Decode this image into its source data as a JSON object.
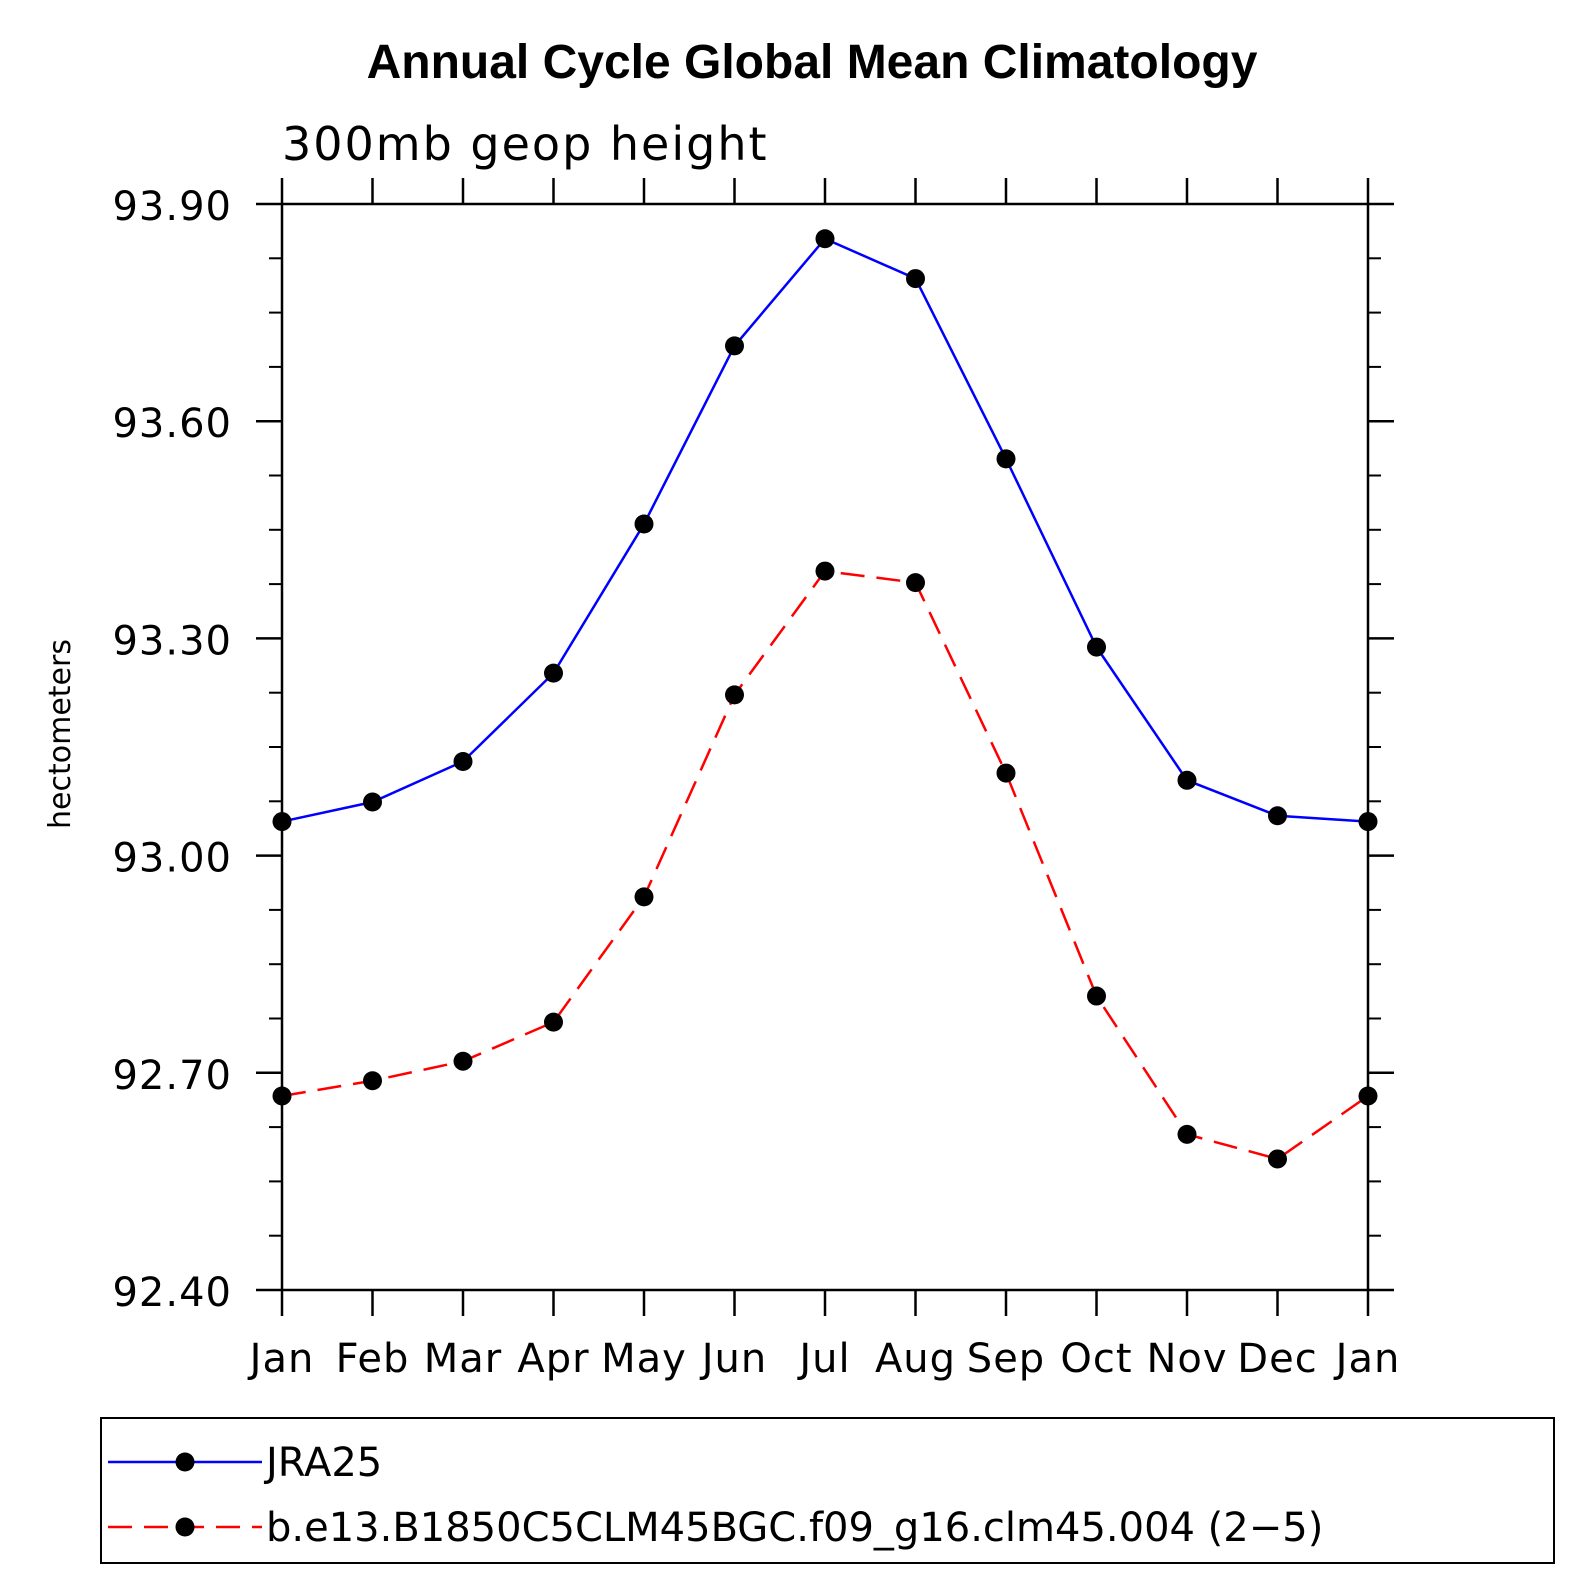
{
  "chart_data": {
    "type": "line",
    "title": "Annual Cycle Global Mean Climatology",
    "subtitle": "300mb geop height",
    "ylabel": "hectometers",
    "xlabel": "",
    "categories": [
      "Jan",
      "Feb",
      "Mar",
      "Apr",
      "May",
      "Jun",
      "Jul",
      "Aug",
      "Sep",
      "Oct",
      "Nov",
      "Dec",
      "Jan"
    ],
    "ylim": [
      92.4,
      93.9
    ],
    "yticks": [
      92.4,
      92.7,
      93.0,
      93.3,
      93.6,
      93.9
    ],
    "ytick_labels": [
      "92.40",
      "92.70",
      "93.00",
      "93.30",
      "93.60",
      "93.90"
    ],
    "minor_ticks_per_major": 3,
    "grid": false,
    "legend_position": "bottom",
    "series": [
      {
        "name": "JRA25",
        "color": "#0000ff",
        "line_style": "solid",
        "marker": "filled-circle",
        "values": [
          93.047,
          93.074,
          93.13,
          93.252,
          93.458,
          93.704,
          93.852,
          93.797,
          93.548,
          93.288,
          93.104,
          93.055,
          93.047
        ]
      },
      {
        "name": "b.e13.B1850C5CLM45BGC.f09_g16.clm45.004 (2−5)",
        "color": "#ff0000",
        "line_style": "dashed",
        "marker": "filled-circle",
        "values": [
          92.668,
          92.689,
          92.716,
          92.77,
          92.943,
          93.222,
          93.393,
          93.377,
          93.114,
          92.806,
          92.615,
          92.581,
          92.668
        ]
      }
    ]
  }
}
